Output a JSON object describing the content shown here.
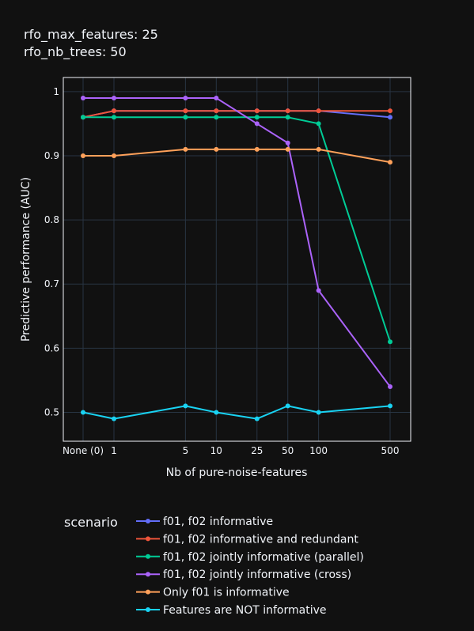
{
  "chart_data": {
    "type": "line",
    "title_lines": [
      "rfo_max_features: 25",
      "rfo_nb_trees: 50"
    ],
    "xlabel": "Nb of pure-noise-features",
    "ylabel": "Predictive performance (AUC)",
    "x_scale": "log",
    "x_zero_label": "None (0)",
    "x": [
      0,
      1,
      5,
      10,
      25,
      50,
      100,
      500
    ],
    "x_tick_labels": [
      "None (0)",
      "1",
      "5",
      "10",
      "25",
      "50",
      "100",
      "500"
    ],
    "y_ticks": [
      0.5,
      0.6,
      0.7,
      0.8,
      0.9,
      1
    ],
    "y_tick_labels": [
      "0.5",
      "0.6",
      "0.7",
      "0.8",
      "0.9",
      "1"
    ],
    "ylim": [
      0.455,
      1.022
    ],
    "grid": true,
    "legend_title": "scenario",
    "legend_position": "bottom-left",
    "series": [
      {
        "name": "f01, f02 informative",
        "color": "#636efa",
        "values": [
          0.96,
          0.97,
          0.97,
          0.97,
          0.97,
          0.97,
          0.97,
          0.96
        ]
      },
      {
        "name": "f01, f02 informative and redundant",
        "color": "#ef553b",
        "values": [
          0.96,
          0.97,
          0.97,
          0.97,
          0.97,
          0.97,
          0.97,
          0.97
        ]
      },
      {
        "name": "f01, f02 jointly informative (parallel)",
        "color": "#00cc96",
        "values": [
          0.96,
          0.96,
          0.96,
          0.96,
          0.96,
          0.96,
          0.95,
          0.61
        ]
      },
      {
        "name": "f01, f02 jointly informative (cross)",
        "color": "#ab63fa",
        "values": [
          0.99,
          0.99,
          0.99,
          0.99,
          0.95,
          0.92,
          0.69,
          0.54
        ]
      },
      {
        "name": "Only f01 is informative",
        "color": "#ffa15a",
        "values": [
          0.9,
          0.9,
          0.91,
          0.91,
          0.91,
          0.91,
          0.91,
          0.89
        ]
      },
      {
        "name": "Features are NOT informative",
        "color": "#19d3f3",
        "values": [
          0.5,
          0.49,
          0.51,
          0.5,
          0.49,
          0.51,
          0.5,
          0.51
        ]
      }
    ]
  }
}
